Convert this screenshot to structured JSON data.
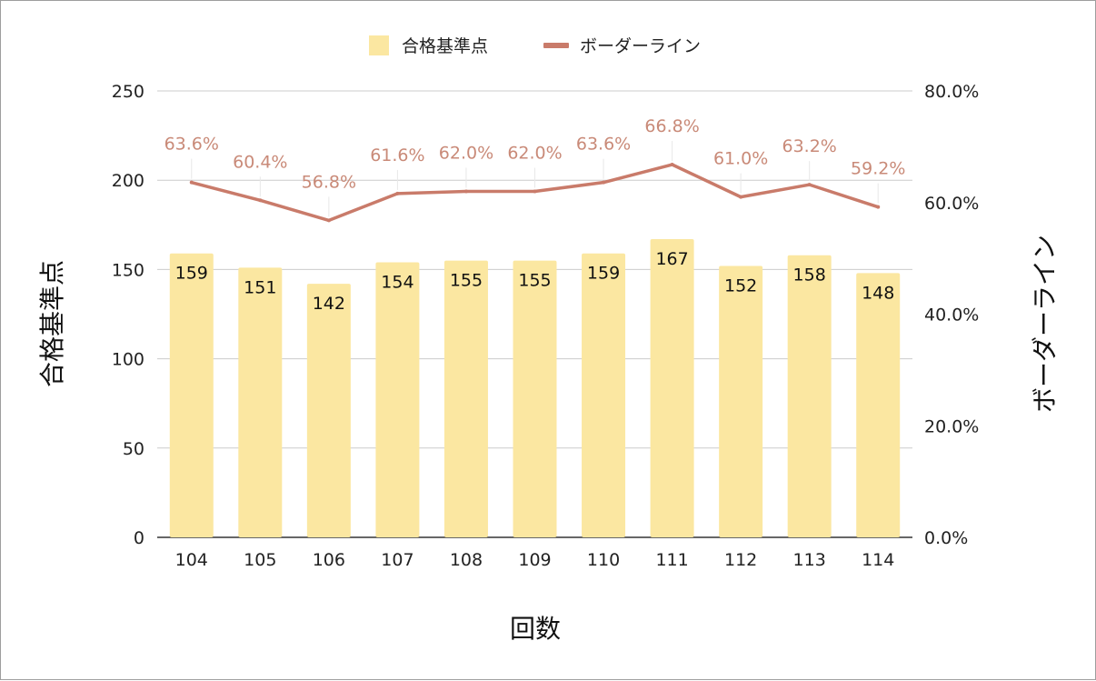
{
  "chart_data": {
    "type": "bar+line",
    "categories": [
      "104",
      "105",
      "106",
      "107",
      "108",
      "109",
      "110",
      "111",
      "112",
      "113",
      "114"
    ],
    "series": [
      {
        "name": "合格基準点",
        "type": "bar",
        "axis": "left",
        "color": "#fbe7a1",
        "values": [
          159,
          151,
          142,
          154,
          155,
          155,
          159,
          167,
          152,
          158,
          148
        ],
        "labels": [
          "159",
          "151",
          "142",
          "154",
          "155",
          "155",
          "159",
          "167",
          "152",
          "158",
          "148"
        ]
      },
      {
        "name": "ボーダーライン",
        "type": "line",
        "axis": "right",
        "color": "#c97b6a",
        "values": [
          63.6,
          60.4,
          56.8,
          61.6,
          62.0,
          62.0,
          63.6,
          66.8,
          61.0,
          63.2,
          59.2
        ],
        "labels": [
          "63.6%",
          "60.4%",
          "56.8%",
          "61.6%",
          "62.0%",
          "62.0%",
          "63.6%",
          "66.8%",
          "61.0%",
          "63.2%",
          "59.2%"
        ]
      }
    ],
    "xlabel": "回数",
    "ylabel_left": "合格基準点",
    "ylabel_right": "ボーダーライン",
    "ylim_left": [
      0,
      250
    ],
    "yticks_left": [
      "0",
      "50",
      "100",
      "150",
      "200",
      "250"
    ],
    "ylim_right": [
      0,
      80
    ],
    "yticks_right": [
      "0.0%",
      "20.0%",
      "40.0%",
      "60.0%",
      "80.0%"
    ],
    "grid": true,
    "legend_position": "top-center"
  }
}
